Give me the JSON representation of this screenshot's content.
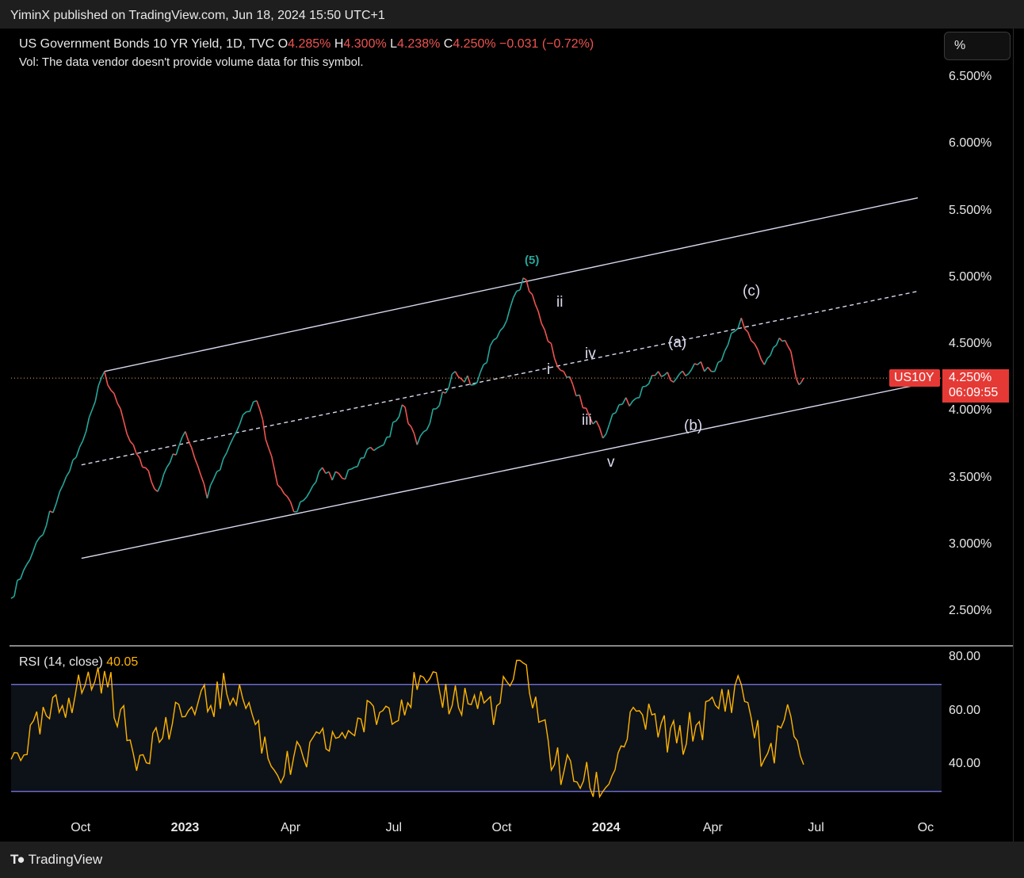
{
  "header": {
    "publisher_line": "YiminX published on TradingView.com, Jun 18, 2024 15:50 UTC+1"
  },
  "legend": {
    "title": "US Government Bonds 10 YR Yield, 1D, TVC",
    "o_label": "O",
    "o_value": "4.285%",
    "h_label": "H",
    "h_value": "4.300%",
    "l_label": "L",
    "l_value": "4.238%",
    "c_label": "C",
    "c_value": "4.250%",
    "change": "−0.031 (−0.72%)",
    "vol_note": "Vol: The data vendor doesn't provide volume data for this symbol."
  },
  "scale_button": "%",
  "symbol_tag": "US10Y",
  "last_price": "4.250%",
  "countdown": "06:09:55",
  "footer": {
    "brand": "TradingView"
  },
  "rsi": {
    "label": "RSI (14, close)",
    "value": "40.05"
  },
  "wave_labels": {
    "w5": "(5)",
    "i": "i",
    "ii": "ii",
    "iii": "iii",
    "iv": "iv",
    "v": "v",
    "a": "(a)",
    "b": "(b)",
    "c": "(c)"
  },
  "colors": {
    "up": "#26a69a",
    "down": "#ef5350",
    "rsi_line": "#ffb300",
    "band": "#7b7bf0",
    "channel": "#d8d8f0",
    "accent": "#e53935"
  },
  "chart_data": [
    {
      "type": "line",
      "title": "US Government Bonds 10 YR Yield, 1D, TVC",
      "y_tick_labels": [
        "6.500%",
        "6.000%",
        "5.500%",
        "5.000%",
        "4.500%",
        "4.000%",
        "3.500%",
        "3.000%",
        "2.500%"
      ],
      "x_tick_labels": [
        "Oct",
        "2023",
        "Apr",
        "Jul",
        "Oct",
        "2024",
        "Apr",
        "Jul",
        "Oc"
      ],
      "ylim": [
        2.3,
        6.7
      ],
      "x": [
        "2022-08-01",
        "2022-08-20",
        "2022-09-15",
        "2022-10-05",
        "2022-10-21",
        "2022-11-15",
        "2022-12-06",
        "2022-12-30",
        "2023-01-18",
        "2023-02-15",
        "2023-03-02",
        "2023-03-20",
        "2023-04-06",
        "2023-04-25",
        "2023-05-15",
        "2023-05-31",
        "2023-06-20",
        "2023-07-06",
        "2023-07-19",
        "2023-08-21",
        "2023-09-06",
        "2023-09-26",
        "2023-10-19",
        "2023-11-01",
        "2023-11-15",
        "2023-12-01",
        "2023-12-27",
        "2024-01-10",
        "2024-01-25",
        "2024-02-13",
        "2024-02-29",
        "2024-03-18",
        "2024-04-02",
        "2024-04-25",
        "2024-05-15",
        "2024-05-28",
        "2024-06-07",
        "2024-06-14",
        "2024-06-18"
      ],
      "series": [
        {
          "values": [
            2.6,
            2.95,
            3.45,
            3.85,
            4.3,
            3.75,
            3.4,
            3.85,
            3.35,
            3.9,
            4.08,
            3.45,
            3.25,
            3.55,
            3.5,
            3.65,
            3.75,
            4.05,
            3.75,
            4.3,
            4.2,
            4.55,
            5.0,
            4.75,
            4.4,
            4.2,
            3.8,
            4.05,
            4.1,
            4.3,
            4.25,
            4.35,
            4.3,
            4.7,
            4.35,
            4.55,
            4.45,
            4.2,
            4.25
          ]
        }
      ],
      "channel_lines": [
        {
          "name": "upper",
          "from": [
            "2022-10-21",
            4.3
          ],
          "to": [
            "2024-09-25",
            5.6
          ]
        },
        {
          "name": "middle",
          "from": [
            "2022-10-01",
            3.6
          ],
          "to": [
            "2024-09-25",
            4.9
          ]
        },
        {
          "name": "lower",
          "from": [
            "2022-10-01",
            2.9
          ],
          "to": [
            "2024-09-25",
            4.2
          ]
        }
      ],
      "last_value": 4.25
    },
    {
      "type": "line",
      "title": "RSI (14, close)",
      "y_tick_labels": [
        "80.00",
        "60.00",
        "40.00"
      ],
      "ylim": [
        27,
        82
      ],
      "bands": [
        70,
        30
      ],
      "x": [
        "2022-08-01",
        "2022-09-20",
        "2022-10-21",
        "2022-11-15",
        "2022-12-30",
        "2023-02-15",
        "2023-03-20",
        "2023-05-15",
        "2023-07-19",
        "2023-09-26",
        "2023-10-19",
        "2023-11-15",
        "2023-12-27",
        "2024-01-25",
        "2024-02-29",
        "2024-04-25",
        "2024-05-15",
        "2024-06-07",
        "2024-06-18"
      ],
      "series": [
        {
          "values": [
            42,
            65,
            75,
            44,
            58,
            70,
            36,
            52,
            68,
            62,
            78,
            40,
            30,
            60,
            48,
            70,
            42,
            58,
            40.05
          ]
        }
      ]
    }
  ]
}
